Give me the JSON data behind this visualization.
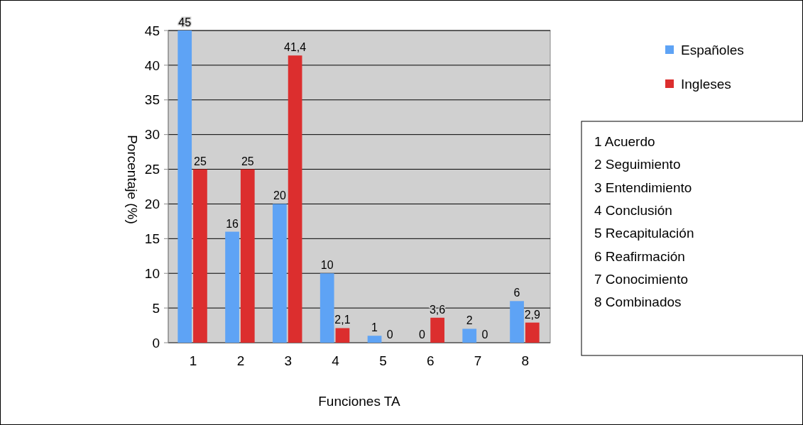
{
  "chart_data": {
    "type": "bar",
    "xlabel": "Funciones TA",
    "ylabel": "Porcentaje (%)",
    "categories": [
      "1",
      "2",
      "3",
      "4",
      "5",
      "6",
      "7",
      "8"
    ],
    "series": [
      {
        "name": "Españoles",
        "color": "#5ea3f5",
        "values": [
          45,
          16,
          20,
          10,
          1,
          0,
          2,
          6
        ],
        "value_labels": [
          "45",
          "16",
          "20",
          "10",
          "1",
          "0",
          "2",
          "6"
        ]
      },
      {
        "name": "Ingleses",
        "color": "#dc2e2e",
        "values": [
          25,
          25,
          41.4,
          2.1,
          0,
          3.6,
          0,
          2.9
        ],
        "value_labels": [
          "25",
          "25",
          "41,4",
          "2,1",
          "0",
          "3,6",
          "0",
          "2,9"
        ]
      }
    ],
    "ylim": [
      0,
      45
    ],
    "yticks": [
      0,
      5,
      10,
      15,
      20,
      25,
      30,
      35,
      40,
      45
    ],
    "grid": "y",
    "legend": "top right",
    "annotations": [
      "1 Acuerdo",
      "2 Seguimiento",
      "3 Entendimiento",
      "4 Conclusión",
      "5 Recapitulación",
      "6 Reafirmación",
      "7 Conocimiento",
      "8 Combinados"
    ]
  }
}
